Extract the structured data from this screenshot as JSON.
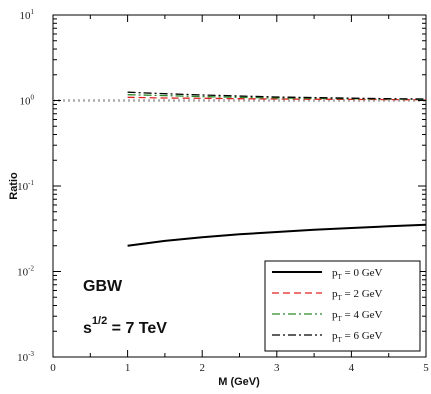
{
  "chart_data": {
    "type": "line",
    "title": "",
    "xlabel": "M (GeV)",
    "ylabel": "Ratio",
    "xlim": [
      0,
      5
    ],
    "ylim": [
      0.001,
      10
    ],
    "yscale": "log",
    "x_ticks": [
      "0",
      "1",
      "2",
      "3",
      "4",
      "5"
    ],
    "y_ticks": [
      {
        "base": "10",
        "exp": "-3",
        "value": 0.001
      },
      {
        "base": "10",
        "exp": "-2",
        "value": 0.01
      },
      {
        "base": "10",
        "exp": "-1",
        "value": 0.1
      },
      {
        "base": "10",
        "exp": "0",
        "value": 1
      },
      {
        "base": "10",
        "exp": "1",
        "value": 10
      }
    ],
    "reference_line": {
      "y": 1,
      "style": "dotted",
      "color": "#aaaaaa"
    },
    "legend": {
      "placement": "bottom-right"
    },
    "annotations": [
      {
        "text": "GBW"
      },
      {
        "text_main": "s",
        "sup": "1/2",
        "rest": " = 7  TeV"
      }
    ],
    "series": [
      {
        "name_main": "p",
        "name_sub": "T",
        "name_rest": " = 0 GeV",
        "style": "solid",
        "color": "#000000",
        "x": [
          1.0,
          1.5,
          2.0,
          2.5,
          3.0,
          3.5,
          4.0,
          4.5,
          5.0
        ],
        "y": [
          0.02,
          0.0228,
          0.0252,
          0.0272,
          0.029,
          0.0307,
          0.0323,
          0.0338,
          0.0352
        ]
      },
      {
        "name_main": "p",
        "name_sub": "T",
        "name_rest": " = 2 GeV",
        "style": "dashed",
        "color": "#e02020",
        "x": [
          1.0,
          1.5,
          2.0,
          2.5,
          3.0,
          3.5,
          4.0,
          4.5,
          5.0
        ],
        "y": [
          1.09,
          1.07,
          1.06,
          1.05,
          1.04,
          1.035,
          1.03,
          1.025,
          1.02
        ]
      },
      {
        "name_main": "p",
        "name_sub": "T",
        "name_rest": " = 4 GeV",
        "style": "dashdot",
        "color": "#2a8a2a",
        "x": [
          1.0,
          1.5,
          2.0,
          2.5,
          3.0,
          3.5,
          4.0,
          4.5,
          5.0
        ],
        "y": [
          1.17,
          1.14,
          1.11,
          1.09,
          1.07,
          1.06,
          1.05,
          1.04,
          1.03
        ]
      },
      {
        "name_main": "p",
        "name_sub": "T",
        "name_rest": " = 6 GeV",
        "style": "dashdot",
        "color": "#000000",
        "x": [
          1.0,
          1.5,
          2.0,
          2.5,
          3.0,
          3.5,
          4.0,
          4.5,
          5.0
        ],
        "y": [
          1.25,
          1.2,
          1.16,
          1.13,
          1.1,
          1.08,
          1.065,
          1.05,
          1.04
        ]
      }
    ]
  }
}
